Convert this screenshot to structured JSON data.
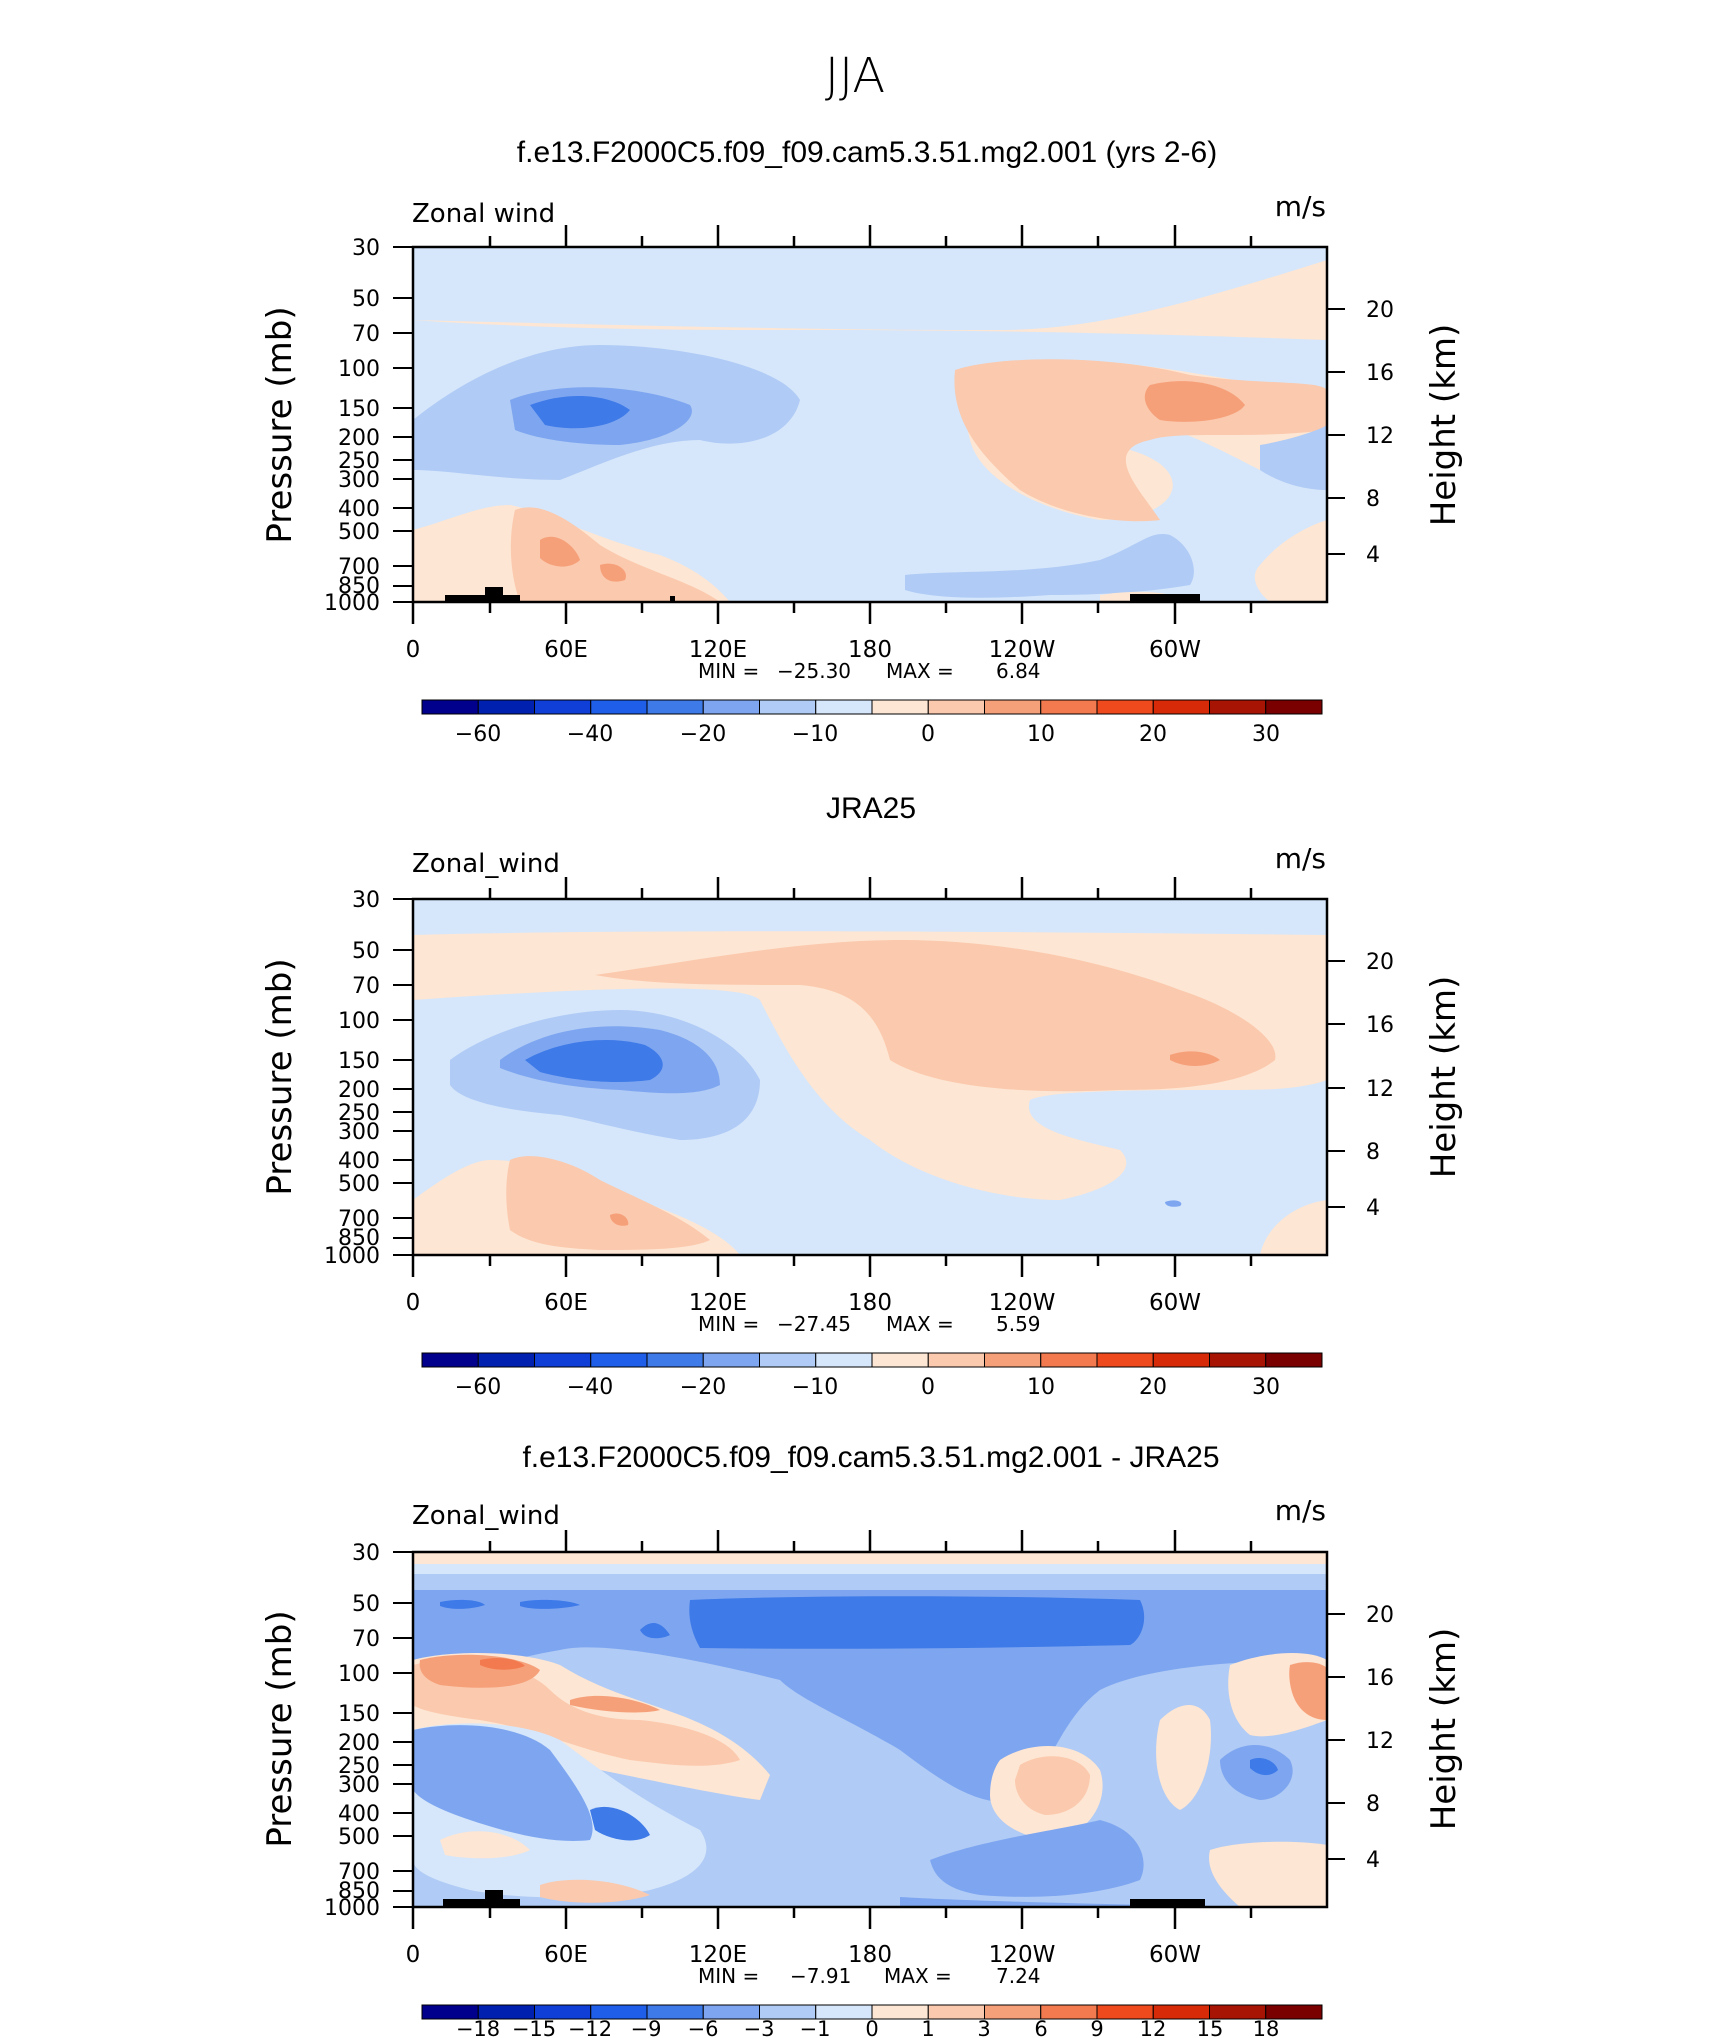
{
  "figure": {
    "title": "JJA",
    "colors": {
      "frame": "#000000",
      "topography": "#000000"
    }
  },
  "chart_data": [
    {
      "type": "heatmap",
      "title": "f.e13.F2000C5.f09_f09.cam5.3.51.mg2.001 (yrs 2-6)",
      "left_label": "Zonal wind",
      "units": "m/s",
      "ylabel": "Pressure (mb)",
      "ylabel_right": "Height (km)",
      "x_ticklabels": [
        "0",
        "60E",
        "120E",
        "180",
        "120W",
        "60W"
      ],
      "y_ticklabels": [
        "30",
        "50",
        "70",
        "100",
        "150",
        "200",
        "250",
        "300",
        "400",
        "500",
        "700",
        "850",
        "1000"
      ],
      "y_right_ticklabels": [
        "20",
        "16",
        "12",
        "8",
        "4"
      ],
      "min_label": "MIN =",
      "min": "−25.30",
      "max_label": "MAX =",
      "max": "6.84",
      "colorbar_ticklabels": [
        "−60",
        "−40",
        "−20",
        "−10",
        "0",
        "10",
        "20",
        "30"
      ],
      "colorbar_colors": [
        "#00008c",
        "#0020b0",
        "#0f3fd6",
        "#1e5ee8",
        "#3e7ae8",
        "#7ea6f0",
        "#b0cbf5",
        "#d6e7fb",
        "#fde6d3",
        "#fbc9ad",
        "#f6a07a",
        "#f27a4e",
        "#ee4a1e",
        "#d62a08",
        "#a81404",
        "#7a0000"
      ],
      "levels": [
        {
          "lon": 70,
          "p": 150,
          "rx": 55,
          "rp": 0.35,
          "v": -25
        },
        {
          "lon": 85,
          "p": 180,
          "rx": 100,
          "rp": 0.75,
          "v": -12
        },
        {
          "lon": 170,
          "p": 90,
          "rx": 140,
          "rp": 1.6,
          "v": -4
        },
        {
          "lon": 290,
          "p": 130,
          "rx": 90,
          "rp": 0.7,
          "v": 5
        },
        {
          "lon": 70,
          "p": 700,
          "rx": 45,
          "rp": 0.5,
          "v": 4
        }
      ]
    },
    {
      "type": "heatmap",
      "title": "JRA25",
      "left_label": "Zonal_wind",
      "units": "m/s",
      "ylabel": "Pressure (mb)",
      "ylabel_right": "Height (km)",
      "x_ticklabels": [
        "0",
        "60E",
        "120E",
        "180",
        "120W",
        "60W"
      ],
      "y_ticklabels": [
        "30",
        "50",
        "70",
        "100",
        "150",
        "200",
        "250",
        "300",
        "400",
        "500",
        "700",
        "850",
        "1000"
      ],
      "y_right_ticklabels": [
        "20",
        "16",
        "12",
        "8",
        "4"
      ],
      "min_label": "MIN =",
      "min": "−27.45",
      "max_label": "MAX =",
      "max": "5.59",
      "colorbar_ticklabels": [
        "−60",
        "−40",
        "−20",
        "−10",
        "0",
        "10",
        "20",
        "30"
      ],
      "colorbar_colors": [
        "#00008c",
        "#0020b0",
        "#0f3fd6",
        "#1e5ee8",
        "#3e7ae8",
        "#7ea6f0",
        "#b0cbf5",
        "#d6e7fb",
        "#fde6d3",
        "#fbc9ad",
        "#f6a07a",
        "#f27a4e",
        "#ee4a1e",
        "#d62a08",
        "#a81404",
        "#7a0000"
      ],
      "levels": [
        {
          "lon": 80,
          "p": 160,
          "rx": 45,
          "rp": 0.35,
          "v": -27
        },
        {
          "lon": 90,
          "p": 180,
          "rx": 100,
          "rp": 0.8,
          "v": -12
        },
        {
          "lon": 230,
          "p": 100,
          "rx": 130,
          "rp": 0.7,
          "v": 4
        },
        {
          "lon": 80,
          "p": 700,
          "rx": 55,
          "rp": 0.5,
          "v": 3
        }
      ]
    },
    {
      "type": "heatmap",
      "title": "f.e13.F2000C5.f09_f09.cam5.3.51.mg2.001 - JRA25",
      "left_label": "Zonal_wind",
      "units": "m/s",
      "ylabel": "Pressure (mb)",
      "ylabel_right": "Height (km)",
      "x_ticklabels": [
        "0",
        "60E",
        "120E",
        "180",
        "120W",
        "60W"
      ],
      "y_ticklabels": [
        "30",
        "50",
        "70",
        "100",
        "150",
        "200",
        "250",
        "300",
        "400",
        "500",
        "700",
        "850",
        "1000"
      ],
      "y_right_ticklabels": [
        "20",
        "16",
        "12",
        "8",
        "4"
      ],
      "min_label": "MIN =",
      "min": "−7.91",
      "max_label": "MAX =",
      "max": "7.24",
      "colorbar_ticklabels": [
        "−18",
        "−15",
        "−12",
        "−9",
        "−6",
        "−3",
        "−1",
        "0",
        "1",
        "3",
        "6",
        "9",
        "12",
        "15",
        "18"
      ],
      "colorbar_colors": [
        "#00008c",
        "#0020b0",
        "#0f3fd6",
        "#1e5ee8",
        "#3e7ae8",
        "#7ea6f0",
        "#b0cbf5",
        "#d6e7fb",
        "#fde6d3",
        "#fbc9ad",
        "#f6a07a",
        "#f27a4e",
        "#ee4a1e",
        "#d62a08",
        "#a81404",
        "#7a0000"
      ],
      "levels": [
        {
          "lon": 180,
          "p": 60,
          "rx": 150,
          "rp": 0.5,
          "v": -7
        },
        {
          "lon": 30,
          "p": 110,
          "rx": 50,
          "rp": 0.35,
          "v": 5
        },
        {
          "lon": 80,
          "p": 150,
          "rx": 40,
          "rp": 0.3,
          "v": 3
        },
        {
          "lon": 260,
          "p": 350,
          "rx": 30,
          "rp": 0.4,
          "v": 3
        },
        {
          "lon": 160,
          "p": 250,
          "rx": 70,
          "rp": 0.9,
          "v": -4
        }
      ]
    }
  ]
}
